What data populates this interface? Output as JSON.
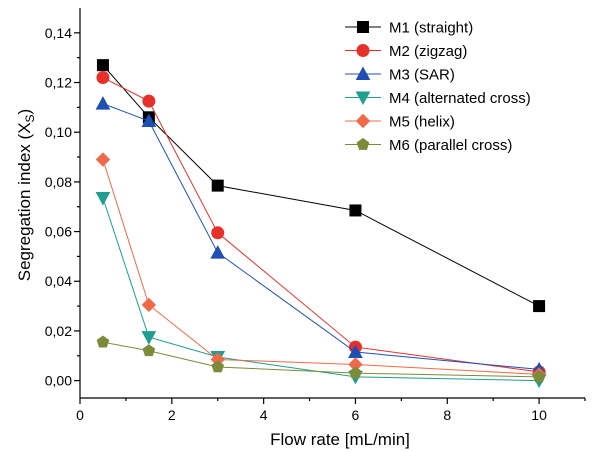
{
  "chart_data": {
    "type": "line",
    "xlabel": "Flow rate [mL/min]",
    "ylabel_main": "Segregation index (X",
    "ylabel_sub": "S",
    "ylabel_close": ")",
    "xlim": [
      0,
      11
    ],
    "ylim": [
      -0.007,
      0.15
    ],
    "xticks": [
      0,
      2,
      4,
      6,
      8,
      10
    ],
    "xtick_labels": [
      "0",
      "2",
      "4",
      "6",
      "8",
      "10"
    ],
    "yticks": [
      0.0,
      0.02,
      0.04,
      0.06,
      0.08,
      0.1,
      0.12,
      0.14
    ],
    "ytick_labels": [
      "0,00",
      "0,02",
      "0,04",
      "0,06",
      "0,08",
      "0,10",
      "0,12",
      "0,14"
    ],
    "legend_position": "top-right",
    "x": [
      0.5,
      1.5,
      3,
      6,
      10
    ],
    "series": [
      {
        "name": "M1 (straight)",
        "marker": "square",
        "color": "#000000",
        "values": [
          0.127,
          0.106,
          0.0785,
          0.0685,
          0.03
        ]
      },
      {
        "name": "M2 (zigzag)",
        "marker": "circle",
        "color": "#e8302a",
        "values": [
          0.122,
          0.1125,
          0.0595,
          0.0135,
          0.0035
        ]
      },
      {
        "name": "M3 (SAR)",
        "marker": "triangle-up",
        "color": "#1f4fb4",
        "values": [
          0.1115,
          0.1045,
          0.0515,
          0.0115,
          0.0045
        ]
      },
      {
        "name": "M4 (alternated cross)",
        "marker": "triangle-down",
        "color": "#1f9e92",
        "values": [
          0.0735,
          0.0175,
          0.0095,
          0.0015,
          0.0
        ]
      },
      {
        "name": "M5 (helix)",
        "marker": "diamond",
        "color": "#f06a4a",
        "values": [
          0.089,
          0.0305,
          0.0085,
          0.0065,
          0.0025
        ]
      },
      {
        "name": "M6 (parallel cross)",
        "marker": "pentagon",
        "color": "#7a8c3a",
        "values": [
          0.0155,
          0.012,
          0.0055,
          0.003,
          0.0015
        ]
      }
    ]
  }
}
